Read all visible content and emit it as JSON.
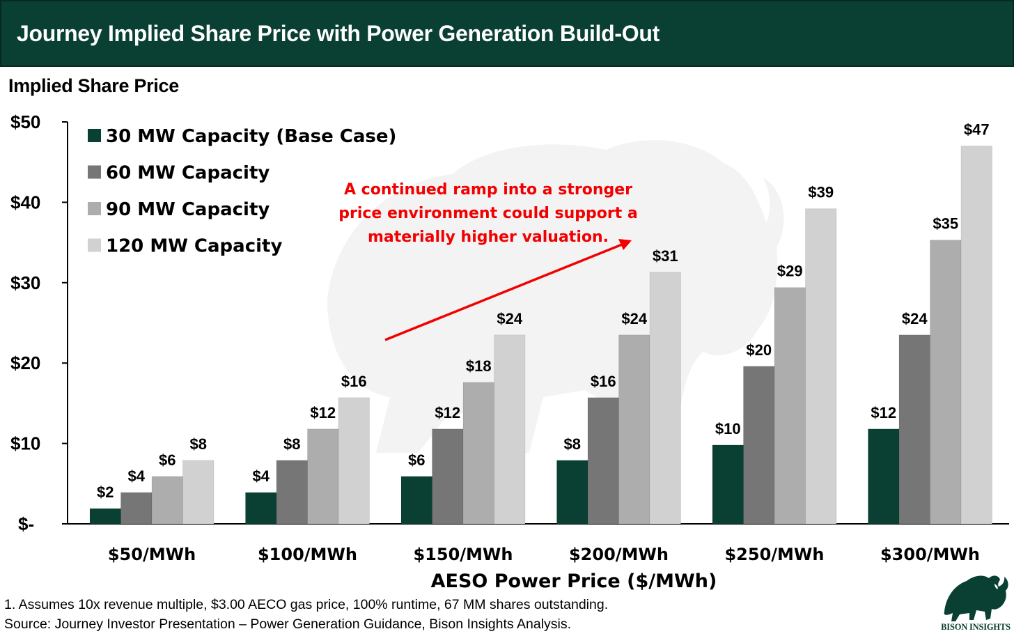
{
  "header": {
    "title": "Journey Implied Share Price with Power Generation Build-Out"
  },
  "chart_data": {
    "type": "bar",
    "title": "Journey Implied Share Price with Power Generation Build-Out",
    "ylabel": "Implied Share Price",
    "xlabel": "AESO Power Price ($/MWh)",
    "ylim": [
      0,
      50
    ],
    "yticks": [
      0,
      10,
      20,
      30,
      40,
      50
    ],
    "ytick_labels": [
      "$-",
      "$10",
      "$20",
      "$30",
      "$40",
      "$50"
    ],
    "grid": false,
    "legend_position": "top-left",
    "categories": [
      "$50/MWh",
      "$100/MWh",
      "$150/MWh",
      "$200/MWh",
      "$250/MWh",
      "$300/MWh"
    ],
    "series": [
      {
        "name": "30 MW Capacity (Base Case)",
        "color": "#0a4033",
        "values": [
          1.9,
          3.9,
          5.9,
          7.9,
          9.8,
          11.8
        ],
        "labels": [
          "$2",
          "$4",
          "$6",
          "$8",
          "$10",
          "$12"
        ]
      },
      {
        "name": "60 MW Capacity",
        "color": "#767676",
        "values": [
          3.9,
          7.9,
          11.8,
          15.7,
          19.6,
          23.5
        ],
        "labels": [
          "$4",
          "$8",
          "$12",
          "$16",
          "$20",
          "$24"
        ]
      },
      {
        "name": "90 MW Capacity",
        "color": "#adadad",
        "values": [
          5.9,
          11.8,
          17.6,
          23.5,
          29.4,
          35.3
        ],
        "labels": [
          "$6",
          "$12",
          "$18",
          "$24",
          "$29",
          "$35"
        ]
      },
      {
        "name": "120 MW Capacity",
        "color": "#d1d1d1",
        "values": [
          7.9,
          15.7,
          23.5,
          31.3,
          39.2,
          47.0
        ],
        "labels": [
          "$8",
          "$16",
          "$24",
          "$31",
          "$39",
          "$47"
        ]
      }
    ],
    "annotations": [
      {
        "text_lines": [
          "A continued ramp into a stronger",
          "price environment could support a",
          "materially higher valuation."
        ],
        "color": "#f20000",
        "arrow": "rising-right"
      }
    ]
  },
  "footnotes": {
    "note1": "1. Assumes 10x revenue multiple, $3.00 AECO gas price, 100% runtime, 67 MM shares outstanding.",
    "source": "Source: Journey Investor Presentation – Power Generation Guidance, Bison Insights Analysis."
  },
  "logo": {
    "icon": "bison-icon",
    "text": "BISON INSIGHTS",
    "color": "#0a4033"
  },
  "watermark": {
    "icon": "bison-watermark-icon"
  }
}
